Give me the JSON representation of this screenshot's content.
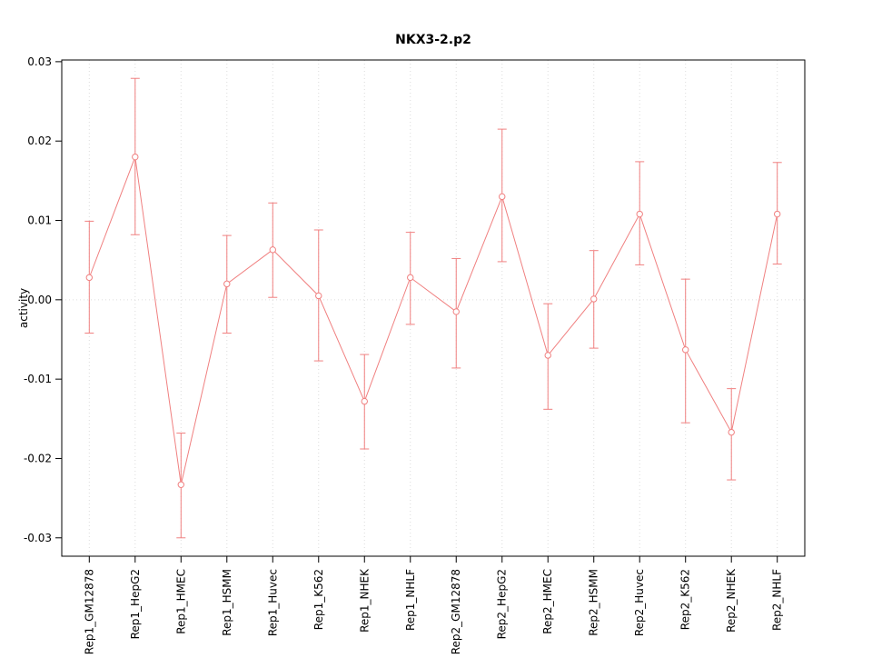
{
  "page": {
    "background": "#ffffff"
  },
  "chart_data": {
    "type": "line",
    "title": "NKX3-2.p2",
    "xlabel": "",
    "ylabel": "activity",
    "ylim": [
      -0.03,
      0.03
    ],
    "yticks": [
      -0.03,
      -0.02,
      -0.01,
      0.0,
      0.01,
      0.02,
      0.03
    ],
    "grid": true,
    "zero_line": true,
    "legend_position": "none",
    "categories": [
      "Rep1_GM12878",
      "Rep1_HepG2",
      "Rep1_HMEC",
      "Rep1_HSMM",
      "Rep1_Huvec",
      "Rep1_K562",
      "Rep1_NHEK",
      "Rep1_NHLF",
      "Rep2_GM12878",
      "Rep2_HepG2",
      "Rep2_HMEC",
      "Rep2_HSMM",
      "Rep2_Huvec",
      "Rep2_K562",
      "Rep2_NHEK",
      "Rep2_NHLF"
    ],
    "series": [
      {
        "name": "activity",
        "values": [
          0.0028,
          0.018,
          -0.0233,
          0.002,
          0.0063,
          0.0005,
          -0.0128,
          0.0028,
          -0.0015,
          0.013,
          -0.007,
          0.0001,
          0.0108,
          -0.0063,
          -0.0167,
          0.0108
        ],
        "lower": [
          -0.0042,
          0.0082,
          -0.03,
          -0.0042,
          0.0003,
          -0.0077,
          -0.0188,
          -0.0031,
          -0.0086,
          0.0048,
          -0.0138,
          -0.0061,
          0.0044,
          -0.0155,
          -0.0227,
          0.0045
        ],
        "upper": [
          0.0099,
          0.0279,
          -0.0168,
          0.0081,
          0.0122,
          0.0088,
          -0.0069,
          0.0085,
          0.0052,
          0.0215,
          -0.0005,
          0.0062,
          0.0174,
          0.0026,
          -0.0112,
          0.0173
        ]
      }
    ],
    "colors": {
      "series": "#f08080",
      "grid": "#dcdcdc",
      "axis": "#000000",
      "point_fill": "#ffffff"
    }
  }
}
